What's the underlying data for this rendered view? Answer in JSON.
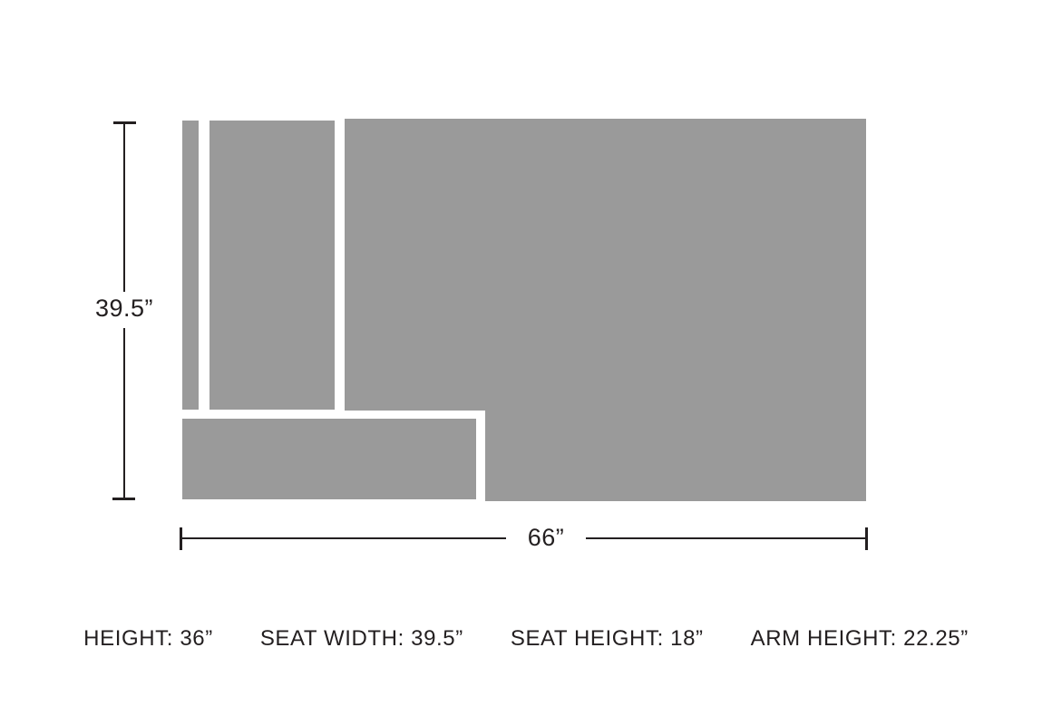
{
  "colors": {
    "shape_gray": "#9a9a9a",
    "ink": "#231f20"
  },
  "dimension_lines": {
    "vertical_label": "39.5”",
    "horizontal_label": "66”"
  },
  "specs": [
    {
      "label": "HEIGHT: 36”"
    },
    {
      "label": "SEAT WIDTH: 39.5”"
    },
    {
      "label": "SEAT HEIGHT: 18”"
    },
    {
      "label": "ARM HEIGHT: 22.25”"
    }
  ]
}
